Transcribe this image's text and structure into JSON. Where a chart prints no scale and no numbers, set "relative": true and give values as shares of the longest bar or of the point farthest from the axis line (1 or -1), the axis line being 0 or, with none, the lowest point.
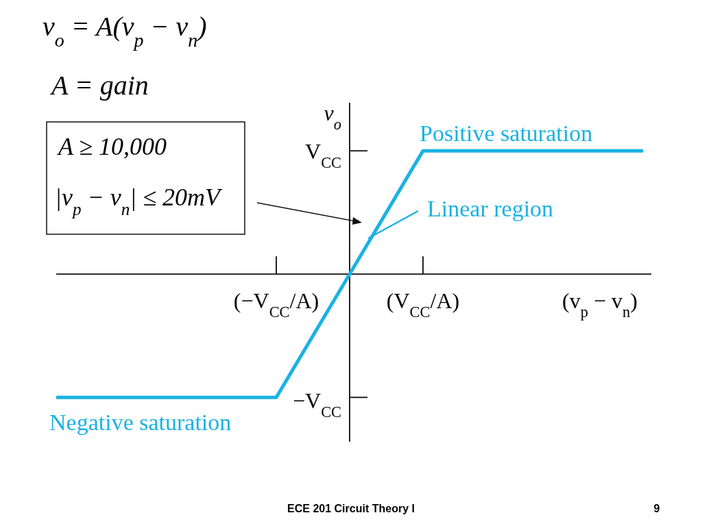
{
  "chart_data": {
    "type": "line",
    "relative": true,
    "title": "v$_{o}$ = A(v$_{p}$ − v$_{n}$)",
    "subtitle": "A = gain",
    "xlabel": "(v$_{p}$ − v$_{n}$)",
    "ylabel": "v$_{o}$",
    "categories": [
      null,
      null,
      null,
      "(−V$_{CC}$/A)",
      null,
      "(V$_{CC}$/A)",
      null,
      null,
      null
    ],
    "series": [
      {
        "color": "#19b2e3",
        "values": [
          -1,
          -1,
          -1,
          -1,
          0,
          1,
          1,
          1,
          1
        ]
      }
    ],
    "annotations": [
      "Positive saturation",
      "Linear region",
      "Negative saturation",
      "V$_{CC}$",
      "−V$_{CC}$",
      "A ≥ 10,000",
      "|v$_{p}$ − v$_{n}$| ≤ 20mV",
      "ECE 201 Circuit Theory I",
      "9"
    ]
  }
}
